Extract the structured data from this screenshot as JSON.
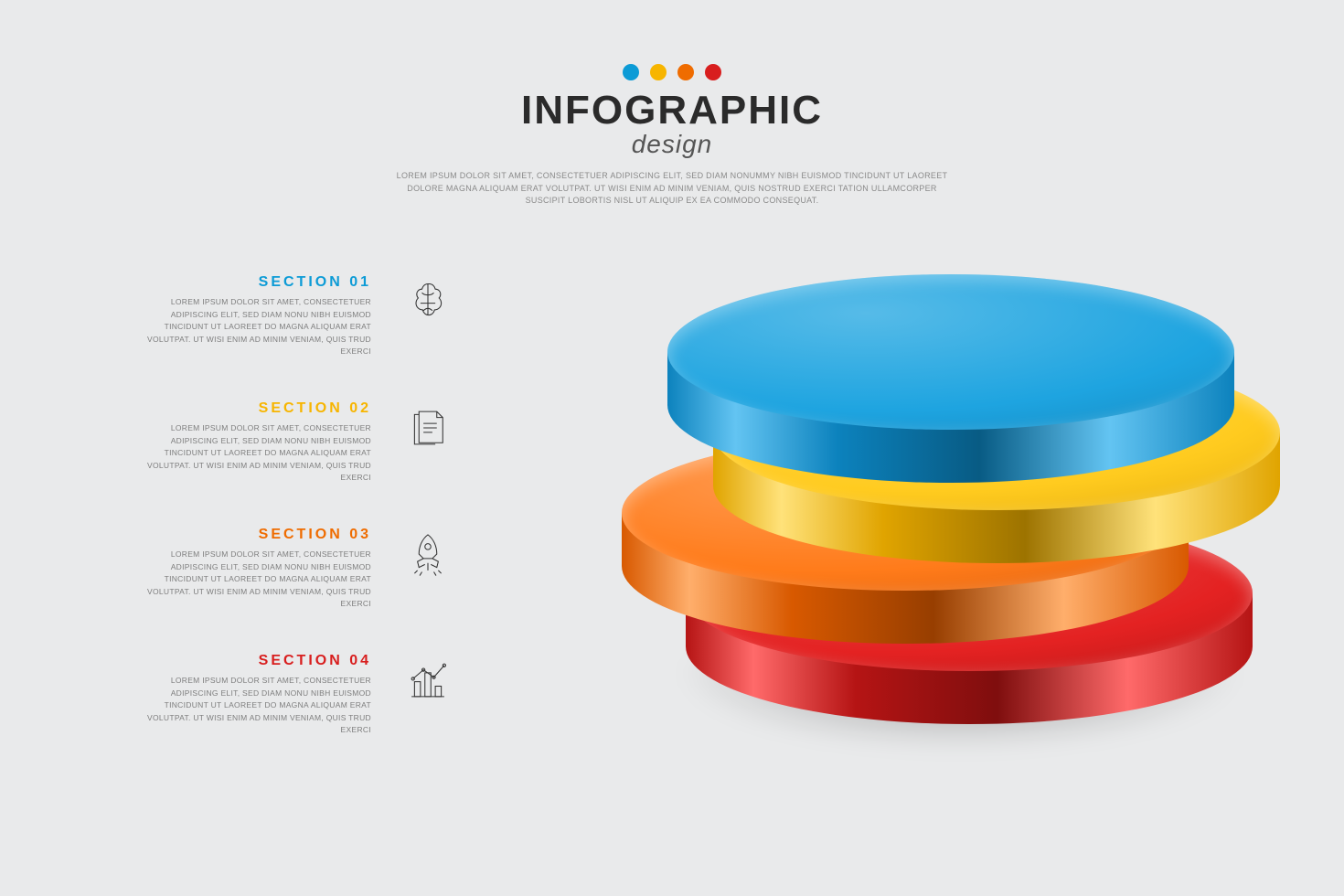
{
  "header": {
    "title": "INFOGRAPHIC",
    "subtitle": "design",
    "intro": "LOREM IPSUM DOLOR SIT AMET, CONSECTETUER ADIPISCING ELIT, SED DIAM NONUMMY NIBH EUISMOD TINCIDUNT UT LAOREET DOLORE MAGNA ALIQUAM ERAT VOLUTPAT. UT WISI ENIM AD MINIM VENIAM, QUIS NOSTRUD EXERCI TATION ULLAMCORPER SUSCIPIT LOBORTIS NISL UT ALIQUIP EX EA COMMODO CONSEQUAT.",
    "dot_colors": [
      "#0c9bd6",
      "#f7b500",
      "#ef6c00",
      "#d81e1e"
    ]
  },
  "sections": [
    {
      "title": "SECTION 01",
      "color": "#0c9bd6",
      "icon": "brain-icon",
      "body": "LOREM IPSUM DOLOR SIT AMET, CONSECTETUER ADIPISCING ELIT, SED DIAM NONU NIBH EUISMOD TINCIDUNT UT LAOREET DO MAGNA ALIQUAM ERAT VOLUTPAT. UT WISI ENIM AD MINIM VENIAM, QUIS TRUD EXERCI"
    },
    {
      "title": "SECTION 02",
      "color": "#f7b500",
      "icon": "document-icon",
      "body": "LOREM IPSUM DOLOR SIT AMET, CONSECTETUER ADIPISCING ELIT, SED DIAM NONU NIBH EUISMOD TINCIDUNT UT LAOREET DO MAGNA ALIQUAM ERAT VOLUTPAT. UT WISI ENIM AD MINIM VENIAM, QUIS TRUD EXERCI"
    },
    {
      "title": "SECTION 03",
      "color": "#ef6c00",
      "icon": "rocket-icon",
      "body": "LOREM IPSUM DOLOR SIT AMET, CONSECTETUER ADIPISCING ELIT, SED DIAM NONU NIBH EUISMOD TINCIDUNT UT LAOREET DO MAGNA ALIQUAM ERAT VOLUTPAT. UT WISI ENIM AD MINIM VENIAM, QUIS TRUD EXERCI"
    },
    {
      "title": "SECTION 04",
      "color": "#d81e1e",
      "icon": "chart-icon",
      "body": "LOREM IPSUM DOLOR SIT AMET, CONSECTETUER ADIPISCING ELIT, SED DIAM NONU NIBH EUISMOD TINCIDUNT UT LAOREET DO MAGNA ALIQUAM ERAT VOLUTPAT. UT WISI ENIM AD MINIM VENIAM, QUIS TRUD EXERCI"
    }
  ],
  "stack": {
    "type": "infographic",
    "disc_width": 620,
    "ellipse_height": 170,
    "side_height": 58,
    "gap": 88,
    "x_offsets": [
      20,
      70,
      -30,
      40
    ],
    "background_color": "#e9eaeb",
    "shadow_color": "rgba(0,0,0,.3)",
    "discs": [
      {
        "top": "#1ea4e0",
        "top_dark": "#0a6fa3",
        "side": "#0c82bd",
        "side_hilite": "#63c4f2"
      },
      {
        "top": "#ffcb1f",
        "top_dark": "#c78d00",
        "side": "#e0a400",
        "side_hilite": "#ffe27a"
      },
      {
        "top": "#ff7b1a",
        "top_dark": "#b84500",
        "side": "#d85900",
        "side_hilite": "#ffae6b"
      },
      {
        "top": "#e42222",
        "top_dark": "#8c0c0c",
        "side": "#b51414",
        "side_hilite": "#ff6a6a"
      }
    ]
  },
  "typography": {
    "title_fontsize": 44,
    "subtitle_fontsize": 28,
    "intro_fontsize": 9,
    "section_title_fontsize": 16,
    "section_body_fontsize": 8.5,
    "body_color": "#7d7d7d",
    "title_color": "#2b2b2b"
  }
}
